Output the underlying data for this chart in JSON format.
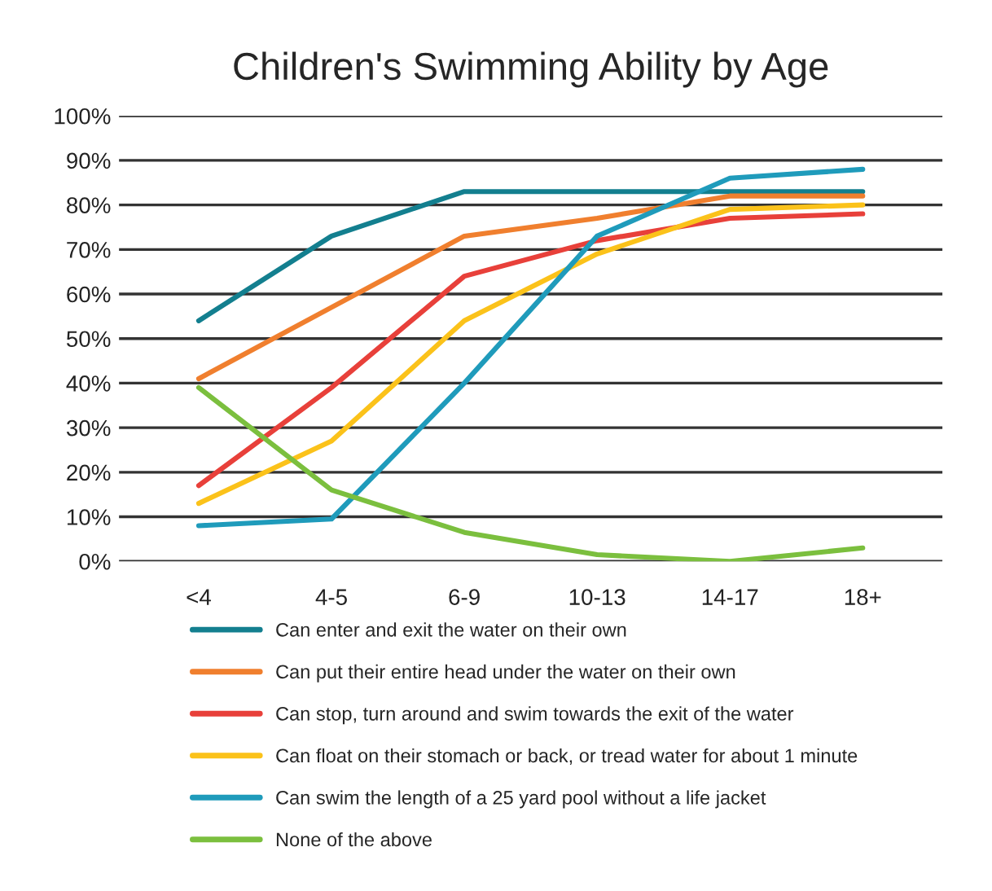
{
  "chart_data": {
    "type": "line",
    "title": "Children's Swimming Ability by Age",
    "categories": [
      "<4",
      "4-5",
      "6-9",
      "10-13",
      "14-17",
      "18+"
    ],
    "series": [
      {
        "name": "Can enter and exit the water on their own",
        "color": "#137f8f",
        "values": [
          54,
          73,
          83,
          83,
          83,
          83
        ]
      },
      {
        "name": "Can put their entire head under the water on their own",
        "color": "#f07f2e",
        "values": [
          41,
          57,
          73,
          77,
          82,
          82
        ]
      },
      {
        "name": "Can stop, turn around and swim towards the exit of the water",
        "color": "#e8403a",
        "values": [
          17,
          39,
          64,
          72,
          77,
          78
        ]
      },
      {
        "name": "Can float on their stomach or back, or tread water for about 1 minute",
        "color": "#fbc21a",
        "values": [
          13,
          27,
          54,
          69,
          79,
          80
        ]
      },
      {
        "name": "Can swim the length of a 25 yard pool without a life jacket",
        "color": "#1f9bbb",
        "values": [
          8,
          9.5,
          40,
          73,
          86,
          88
        ]
      },
      {
        "name": "None of the above",
        "color": "#7bbf3e",
        "values": [
          39,
          16,
          6.5,
          1.5,
          0,
          3
        ]
      }
    ],
    "ylim": [
      0,
      100
    ],
    "yticks": [
      {
        "value": 0,
        "label": "0%"
      },
      {
        "value": 10,
        "label": "10%"
      },
      {
        "value": 20,
        "label": "20%"
      },
      {
        "value": 30,
        "label": "30%"
      },
      {
        "value": 40,
        "label": "40%"
      },
      {
        "value": 50,
        "label": "50%"
      },
      {
        "value": 60,
        "label": "60%"
      },
      {
        "value": 70,
        "label": "70%"
      },
      {
        "value": 80,
        "label": "80%"
      },
      {
        "value": 90,
        "label": "90%"
      },
      {
        "value": 100,
        "label": "100%"
      }
    ],
    "grid": "y",
    "legend": "bottom",
    "marker": "none",
    "line_style": "solid"
  }
}
